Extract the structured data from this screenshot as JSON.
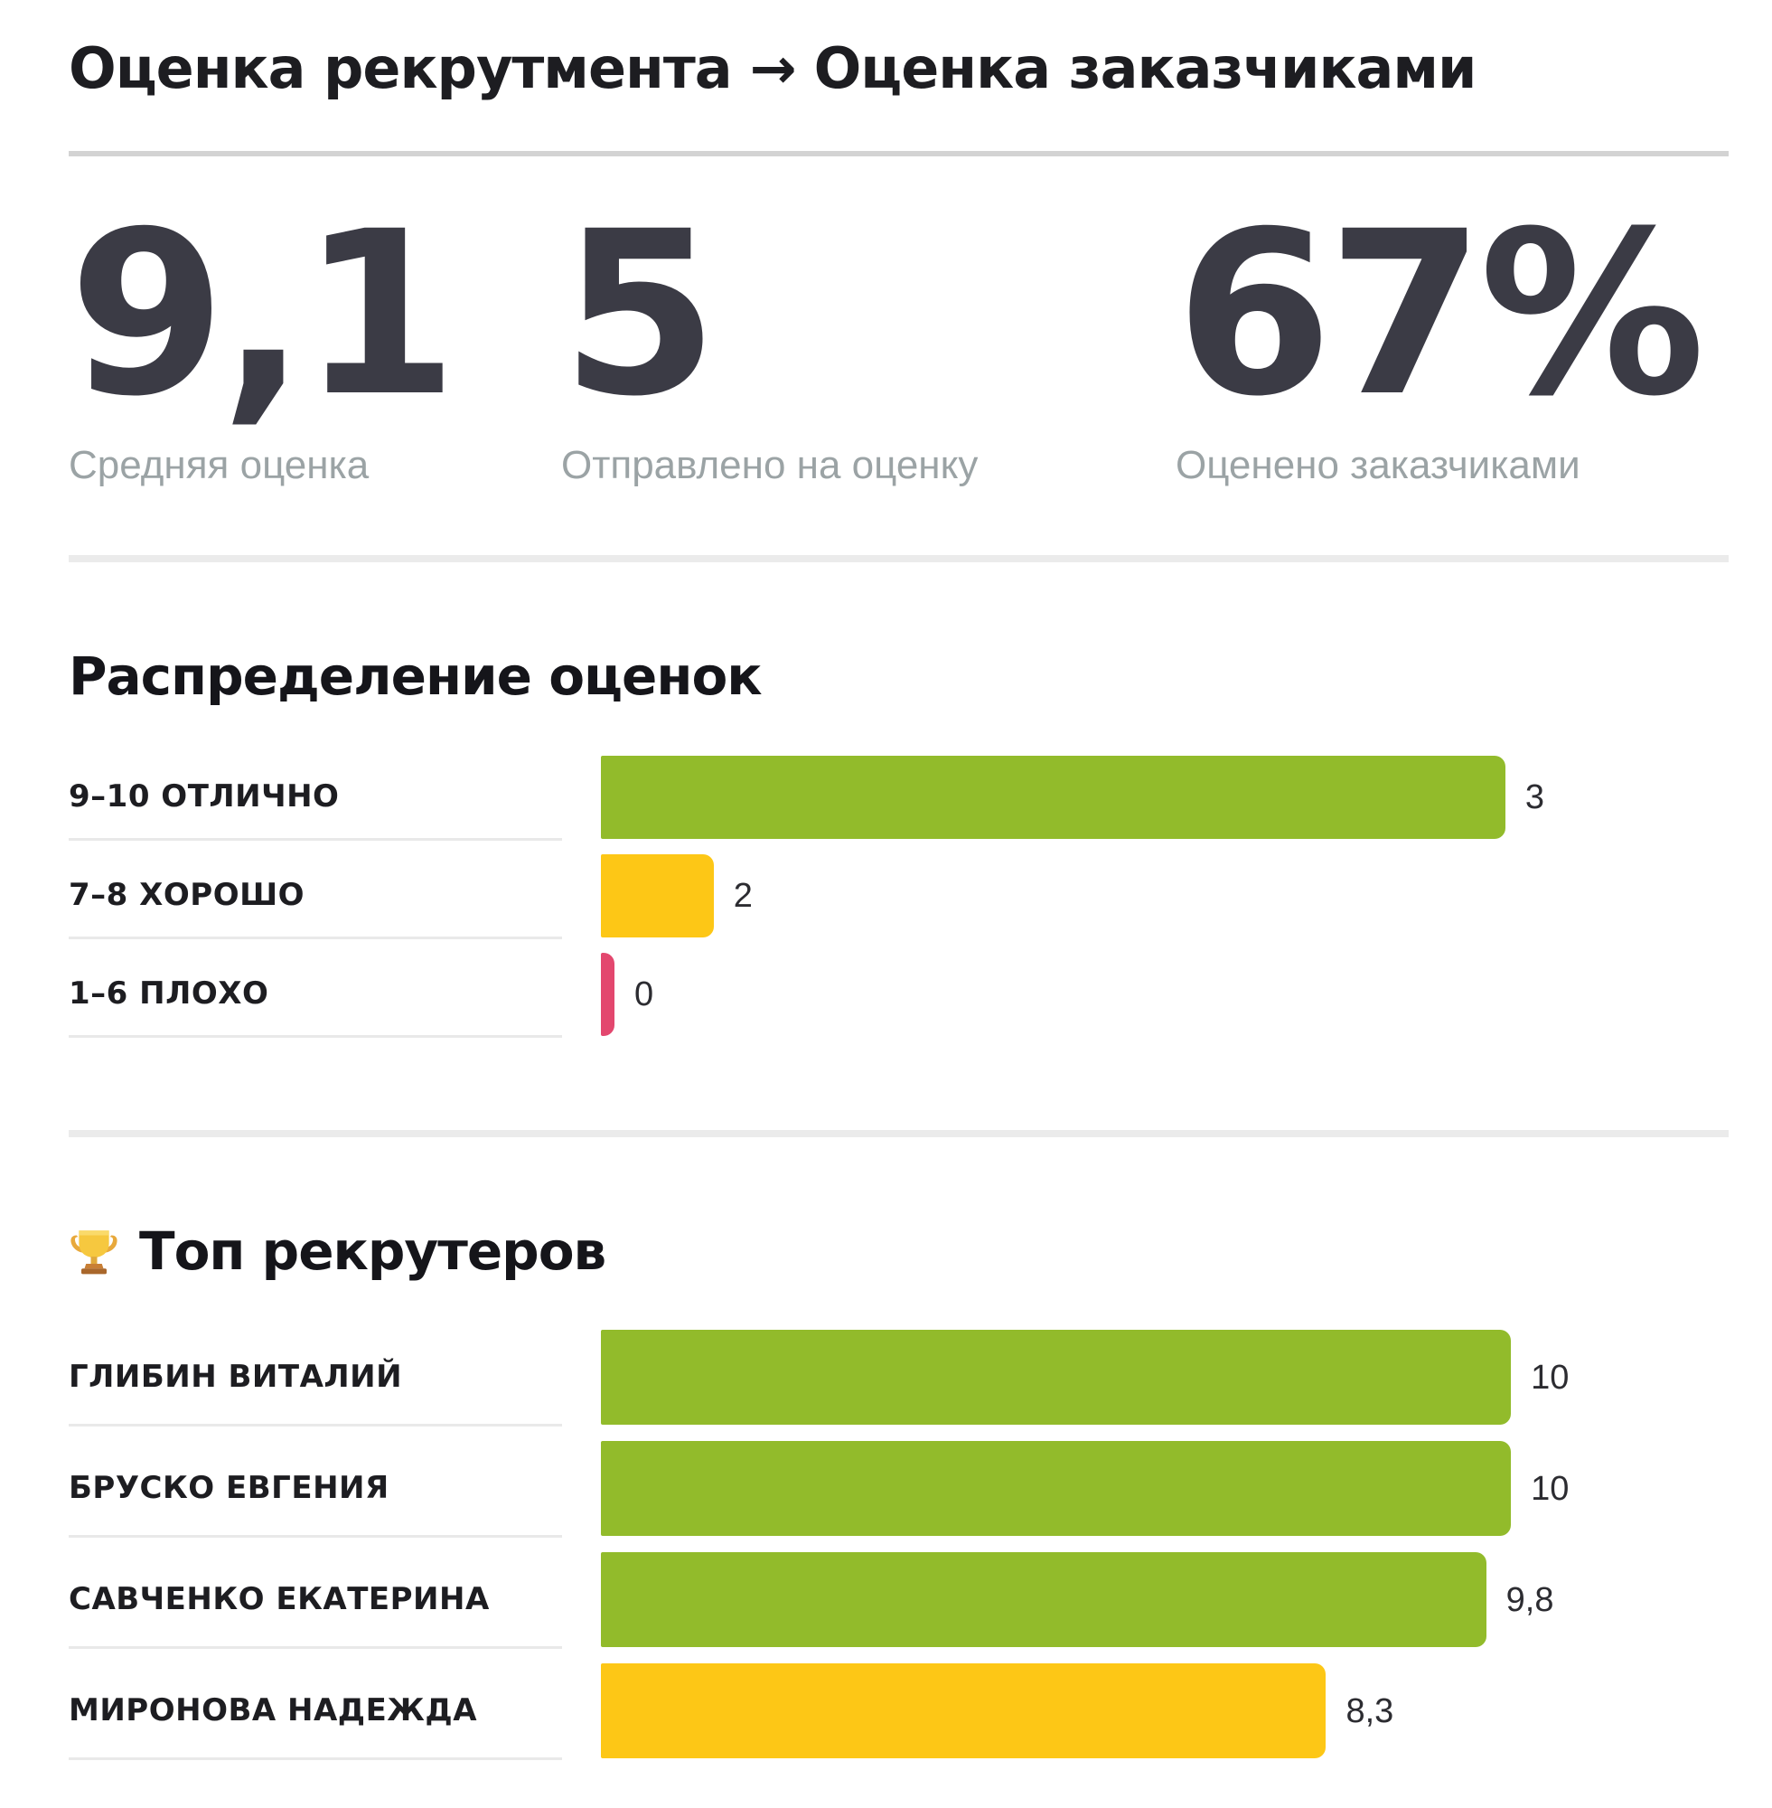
{
  "page": {
    "title": {
      "left": "Оценка рекрутмента",
      "arrow": "→",
      "right": "Оценка заказчиками"
    }
  },
  "stats": [
    {
      "value": "9,1",
      "label": "Средняя оценка"
    },
    {
      "value": "5",
      "label": "Отправлено на оценку"
    },
    {
      "value": "67%",
      "label": "Оценено заказчиками"
    }
  ],
  "icons": {
    "trophy": "🏆"
  },
  "colors": {
    "text_dark": "#1d1d21",
    "stat_number": "#3b3b45",
    "stat_label_gray": "#9ba3a5",
    "green": "#92bb2b",
    "yellow": "#fdc716",
    "pink": "#e3476e",
    "divider_strong": "#d3d3d3",
    "divider_light": "#ebebeb",
    "row_underline": "#e9e9e9"
  },
  "chart_data": [
    {
      "type": "bar",
      "orientation": "horizontal",
      "title": "Распределение оценок",
      "categories": [
        "9–10 ОТЛИЧНО",
        "7–8 ХОРОШО",
        "1–6 ПЛОХО"
      ],
      "values": [
        3,
        2,
        0
      ],
      "value_labels": [
        "3",
        "2",
        "0"
      ],
      "bar_colors": [
        "#92bb2b",
        "#fdc716",
        "#e3476e"
      ],
      "layout": {
        "legend": "none",
        "grid": "off",
        "value_label_position": "right-of-bar",
        "bar_width_pct": [
          80.2,
          10.0,
          1.2
        ]
      }
    },
    {
      "type": "bar",
      "orientation": "horizontal",
      "title": "Топ рекрутеров",
      "title_icon": "trophy",
      "categories": [
        "ГЛИБИН ВИТАЛИЙ",
        "БРУСКО ЕВГЕНИЯ",
        "САВЧЕНКО ЕКАТЕРИНА",
        "МИРОНОВА НАДЕЖДА"
      ],
      "values": [
        10,
        10,
        9.8,
        8.3
      ],
      "value_labels": [
        "10",
        "10",
        "9,8",
        "8,3"
      ],
      "bar_colors": [
        "#92bb2b",
        "#92bb2b",
        "#92bb2b",
        "#fdc716"
      ],
      "layout": {
        "legend": "none",
        "grid": "off",
        "xlim": [
          0,
          10
        ],
        "value_label_position": "right-of-bar",
        "bar_width_pct": [
          80.7,
          80.7,
          78.5,
          64.3
        ]
      }
    }
  ]
}
